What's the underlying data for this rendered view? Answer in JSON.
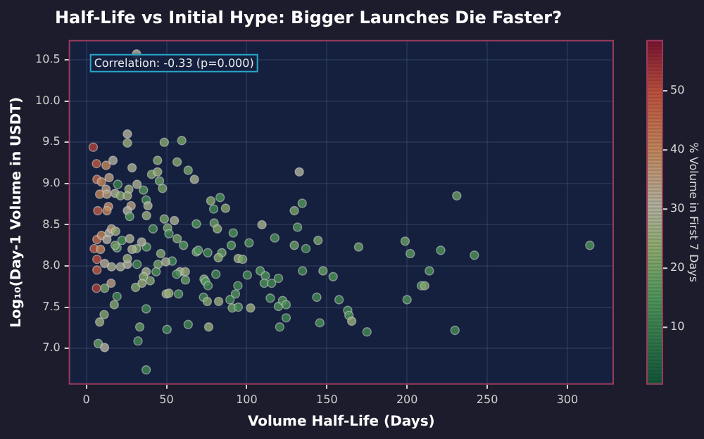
{
  "chart_data": {
    "type": "scatter",
    "title": "Half-Life vs Initial Hype: Bigger Launches Die Faster?",
    "xlabel": "Volume Half-Life (Days)",
    "ylabel": "Log₁₀(Day-1 Volume in USDT)",
    "clabel": "% Volume in First 7 Days",
    "annotations": [
      "Correlation: -0.33 (p=0.000)"
    ],
    "xlim": [
      -11,
      329
    ],
    "xticks": [
      0,
      50,
      100,
      150,
      200,
      250,
      300
    ],
    "ylim": [
      6.56,
      10.74
    ],
    "yticks": [
      {
        "value": 7,
        "label": "7.0"
      },
      {
        "value": 7.5,
        "label": "7.5"
      },
      {
        "value": 8,
        "label": "8.0"
      },
      {
        "value": 8.5,
        "label": "8.5"
      },
      {
        "value": 9,
        "label": "9.0"
      },
      {
        "value": 9.5,
        "label": "9.5"
      },
      {
        "value": 10,
        "label": "10.0"
      },
      {
        "value": 10.5,
        "label": "10.5"
      }
    ],
    "clim": [
      0.3,
      58.6
    ],
    "cticks": [
      10,
      20,
      30,
      40,
      50
    ],
    "grid": true,
    "legend": false,
    "marker": "circle",
    "x": [
      31.3,
      4.3,
      25.6,
      25.6,
      48.6,
      59.5,
      6.3,
      12.3,
      16.6,
      28.5,
      44.4,
      56.6,
      40.7,
      44.4,
      63.5,
      67.4,
      132.8,
      6.6,
      9.4,
      14.2,
      45.6,
      47.5,
      31.6,
      26.5,
      35.6,
      19.6,
      12.3,
      8.3,
      12.8,
      17.9,
      21.3,
      25.6,
      37.3,
      38.4,
      77.6,
      83.4,
      79.4,
      86.8,
      134.6,
      129.7,
      131.7,
      109.5,
      68.6,
      79.7,
      48.6,
      54.9,
      37.5,
      27.9,
      25.6,
      27,
      13.8,
      7.1,
      12.8,
      41.6,
      50.7,
      51.5,
      81.7,
      91.6,
      101.5,
      117.5,
      144.5,
      136.9,
      129.7,
      56.6,
      60.6,
      68.6,
      69.8,
      75.7,
      84.5,
      90.4,
      82.3,
      94.7,
      97.5,
      46.4,
      53.5,
      49.5,
      44.7,
      31.6,
      37.5,
      34.5,
      31.3,
      28.5,
      22.2,
      27,
      19.1,
      6.6,
      6.6,
      11.4,
      15.7,
      21.3,
      25.6,
      25.6,
      4.9,
      8.8,
      6.6,
      9.4,
      14.2,
      15.7,
      12.8,
      17.9,
      18.3,
      58.4,
      61.7,
      61.8,
      56.3,
      37.3,
      35.6,
      39.8,
      43.5,
      30.7,
      34.7,
      15.4,
      11.4,
      6.3,
      19.1,
      17.4,
      49.8,
      51.5,
      57.5,
      73.4,
      74.3,
      75.9,
      73.1,
      75.4,
      82.5,
      80.8,
      94.5,
      93,
      89.6,
      91,
      94.7,
      102.4,
      100.4,
      108.4,
      111.6,
      110.9,
      115.5,
      119.8,
      114.7,
      119.8,
      122.4,
      124.6,
      124.6,
      120.6,
      134.8,
      147.6,
      153.9,
      143.7,
      145.6,
      157.6,
      37.3,
      33.3,
      32.2,
      37.3,
      50.3,
      63.5,
      76.3,
      11.1,
      8.3,
      7.4,
      11.4,
      231,
      169.8,
      198.8,
      202,
      221,
      242,
      314,
      213.9,
      209,
      211,
      200,
      163,
      163.8,
      165.5,
      175,
      229.9
    ],
    "values": [
      10.57,
      9.44,
      9.6,
      9.49,
      9.5,
      9.52,
      9.24,
      9.22,
      9.28,
      9.19,
      9.28,
      9.26,
      9.11,
      9.14,
      9.16,
      9.05,
      9.14,
      9.05,
      9.02,
      9.07,
      9.03,
      8.94,
      8.99,
      8.93,
      8.92,
      8.99,
      8.93,
      8.87,
      8.87,
      8.88,
      8.85,
      8.85,
      8.8,
      8.73,
      8.79,
      8.83,
      8.69,
      8.7,
      8.76,
      8.67,
      8.47,
      8.5,
      8.51,
      8.52,
      8.57,
      8.55,
      8.61,
      8.73,
      8.67,
      8.6,
      8.72,
      8.67,
      8.67,
      8.45,
      8.46,
      8.39,
      8.45,
      8.4,
      8.28,
      8.34,
      8.31,
      8.21,
      8.25,
      8.33,
      8.25,
      8.17,
      8.19,
      8.16,
      8.16,
      8.25,
      8.1,
      8.09,
      8.08,
      8.15,
      8.06,
      8.05,
      8.02,
      8.02,
      8.23,
      8.29,
      8.21,
      8.2,
      8.31,
      8.33,
      8.22,
      8.08,
      7.95,
      8.03,
      7.99,
      7.99,
      8.02,
      8.09,
      8.21,
      8.2,
      8.32,
      8.37,
      8.4,
      8.45,
      8.32,
      8.25,
      8.42,
      7.93,
      7.93,
      7.83,
      7.9,
      7.93,
      7.87,
      7.82,
      7.93,
      7.74,
      7.79,
      7.79,
      7.73,
      7.73,
      7.63,
      7.53,
      7.66,
      7.67,
      7.66,
      7.84,
      7.81,
      7.76,
      7.62,
      7.57,
      7.57,
      7.9,
      7.76,
      7.66,
      7.59,
      7.49,
      7.5,
      7.49,
      7.89,
      7.94,
      7.88,
      7.79,
      7.79,
      7.85,
      7.61,
      7.51,
      7.58,
      7.53,
      7.37,
      7.26,
      7.94,
      7.94,
      7.87,
      7.62,
      7.31,
      7.59,
      7.48,
      7.26,
      7.09,
      6.74,
      7.23,
      7.29,
      7.26,
      7.41,
      7.32,
      7.06,
      7.01,
      8.85,
      8.23,
      8.3,
      8.15,
      8.19,
      8.13,
      8.25,
      7.94,
      7.76,
      7.76,
      7.59,
      7.46,
      7.4,
      7.33,
      7.2,
      7.22
    ],
    "cvalues": [
      30,
      52,
      30,
      25,
      22,
      20,
      48,
      40,
      30,
      28,
      22,
      22,
      22,
      25,
      20,
      28,
      30,
      45,
      40,
      35,
      18,
      20,
      28,
      25,
      15,
      10,
      35,
      40,
      35,
      28,
      22,
      25,
      12,
      28,
      22,
      14,
      12,
      22,
      15,
      20,
      14,
      28,
      15,
      18,
      20,
      28,
      25,
      35,
      30,
      15,
      38,
      48,
      40,
      12,
      20,
      12,
      22,
      14,
      14,
      14,
      20,
      12,
      18,
      20,
      16,
      18,
      14,
      12,
      18,
      15,
      22,
      25,
      20,
      22,
      12,
      28,
      20,
      12,
      14,
      30,
      22,
      28,
      14,
      28,
      14,
      50,
      48,
      32,
      28,
      28,
      30,
      25,
      48,
      40,
      45,
      40,
      30,
      35,
      30,
      20,
      25,
      28,
      25,
      18,
      12,
      28,
      22,
      22,
      14,
      22,
      25,
      35,
      20,
      52,
      12,
      22,
      25,
      25,
      14,
      20,
      14,
      12,
      12,
      22,
      25,
      12,
      12,
      15,
      12,
      18,
      14,
      25,
      12,
      14,
      14,
      14,
      12,
      12,
      12,
      14,
      14,
      14,
      12,
      12,
      12,
      18,
      14,
      12,
      14,
      12,
      12,
      18,
      12,
      12,
      12,
      12,
      25,
      22,
      25,
      18,
      30,
      18,
      18,
      18,
      16,
      14,
      14,
      14,
      14,
      14,
      22,
      14,
      12,
      14,
      25,
      12,
      12
    ]
  }
}
